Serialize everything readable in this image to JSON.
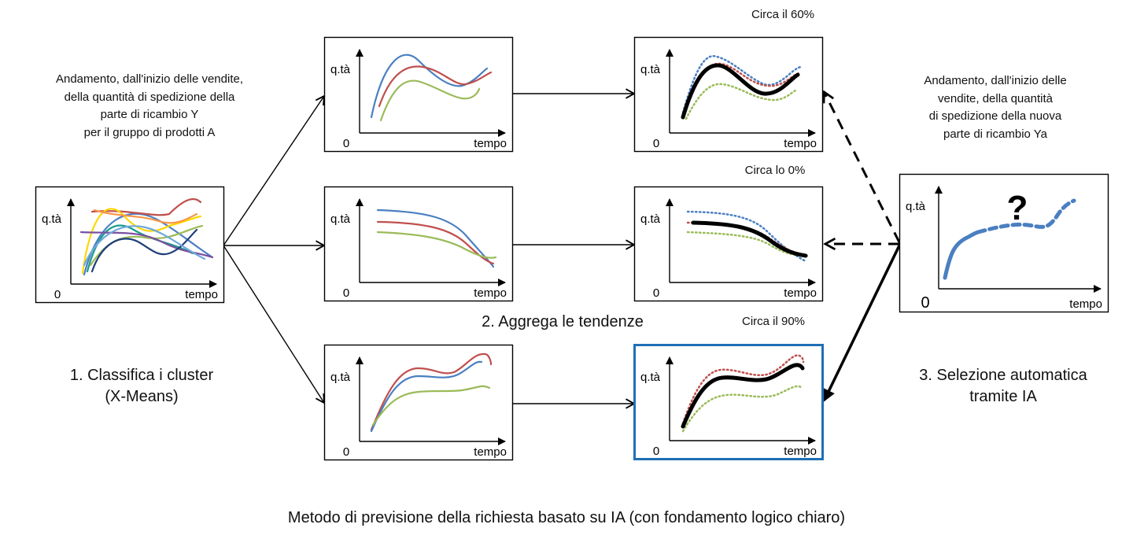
{
  "source": {
    "description_lines": [
      "Andamento, dall'inizio delle vendite,",
      "della quantità di spedizione della",
      "parte di ricambio Y",
      "per il gruppo di prodotti A"
    ]
  },
  "target": {
    "description_lines": [
      "Andamento, dall'inizio delle",
      "vendite, della quantità",
      "di spedizione della nuova",
      "parte di ricambio Ya"
    ],
    "question_mark": "?"
  },
  "axis": {
    "y_label": "q.tà",
    "x_label": "tempo",
    "origin": "0"
  },
  "steps": {
    "step1_lines": [
      "1. Classifica i cluster",
      "(X-Means)"
    ],
    "step2": "2. Aggrega le tendenze",
    "step3_lines": [
      "3. Selezione automatica",
      "tramite IA"
    ]
  },
  "results": {
    "top": "Circa il 60%",
    "middle": "Circa lo 0%",
    "bottom": "Circa il 90%"
  },
  "caption": "Metodo di previsione della richiesta basato su IA (con fondamento logico chiaro)",
  "colors": {
    "blue": "#4a7fc1",
    "red": "#c0504d",
    "green": "#9bbb59",
    "black": "#000000",
    "highlight_border": "#1f6fb5"
  }
}
